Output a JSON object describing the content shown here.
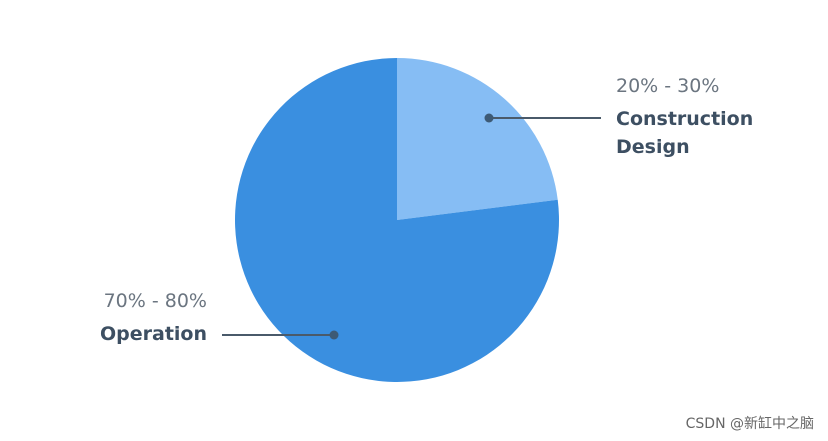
{
  "chart_data": {
    "type": "pie",
    "categories": [
      "Construction Design",
      "Operation"
    ],
    "values": [
      23,
      77
    ],
    "colors": [
      "#86bdf4",
      "#3a8fe0"
    ],
    "annotations": [
      "20% - 30%",
      "70% - 80%"
    ]
  },
  "watermark": "CSDN @新缸中之脑"
}
